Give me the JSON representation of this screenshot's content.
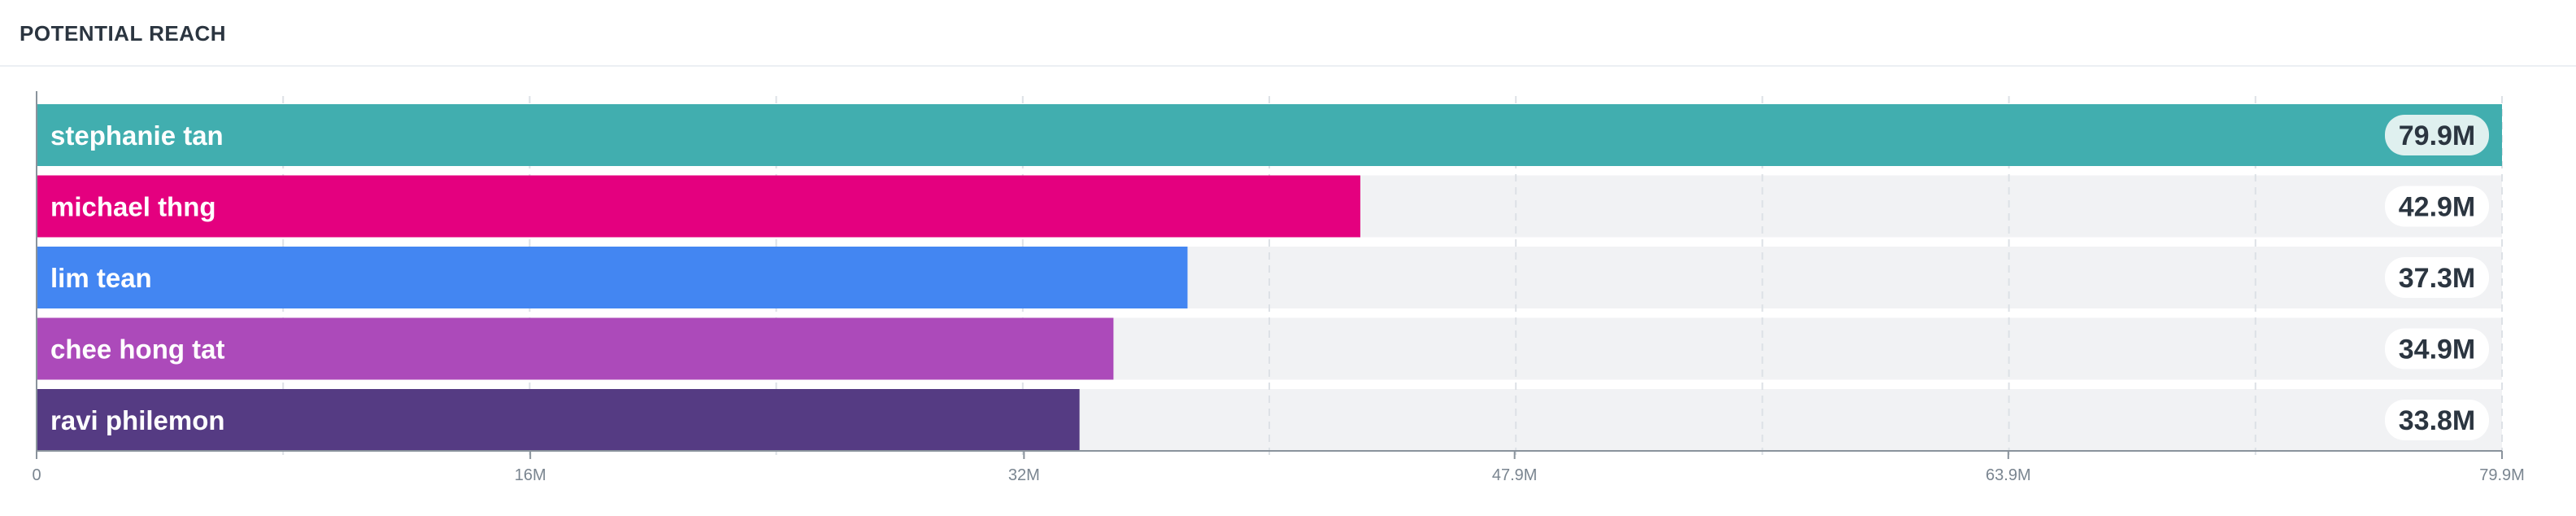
{
  "header": {
    "title": "POTENTIAL REACH"
  },
  "colors": {
    "track": "#f1f2f4",
    "grid": "#dde1e6",
    "value_pill": "#ffffff",
    "value_pill_highlight": "#dff0ef",
    "axis": "#8a939c"
  },
  "chart_data": {
    "type": "bar",
    "orientation": "horizontal",
    "title": "POTENTIAL REACH",
    "xlabel": "",
    "ylabel": "",
    "xlim": [
      0,
      79.9
    ],
    "units": "M",
    "x_ticks": [
      0,
      16,
      32,
      47.9,
      63.9,
      79.9
    ],
    "x_tick_labels": [
      "0",
      "16M",
      "32M",
      "47.9M",
      "63.9M",
      "79.9M"
    ],
    "grid": true,
    "legend": "none",
    "categories": [
      "stephanie tan",
      "michael thng",
      "lim tean",
      "chee hong tat",
      "ravi philemon"
    ],
    "values": [
      79.9,
      42.9,
      37.3,
      34.9,
      33.8
    ],
    "value_labels": [
      "79.9M",
      "42.9M",
      "37.3M",
      "34.9M",
      "33.8M"
    ],
    "bar_colors": [
      "#41aeaf",
      "#e4007f",
      "#4386f2",
      "#ac4aba",
      "#553b83"
    ]
  }
}
